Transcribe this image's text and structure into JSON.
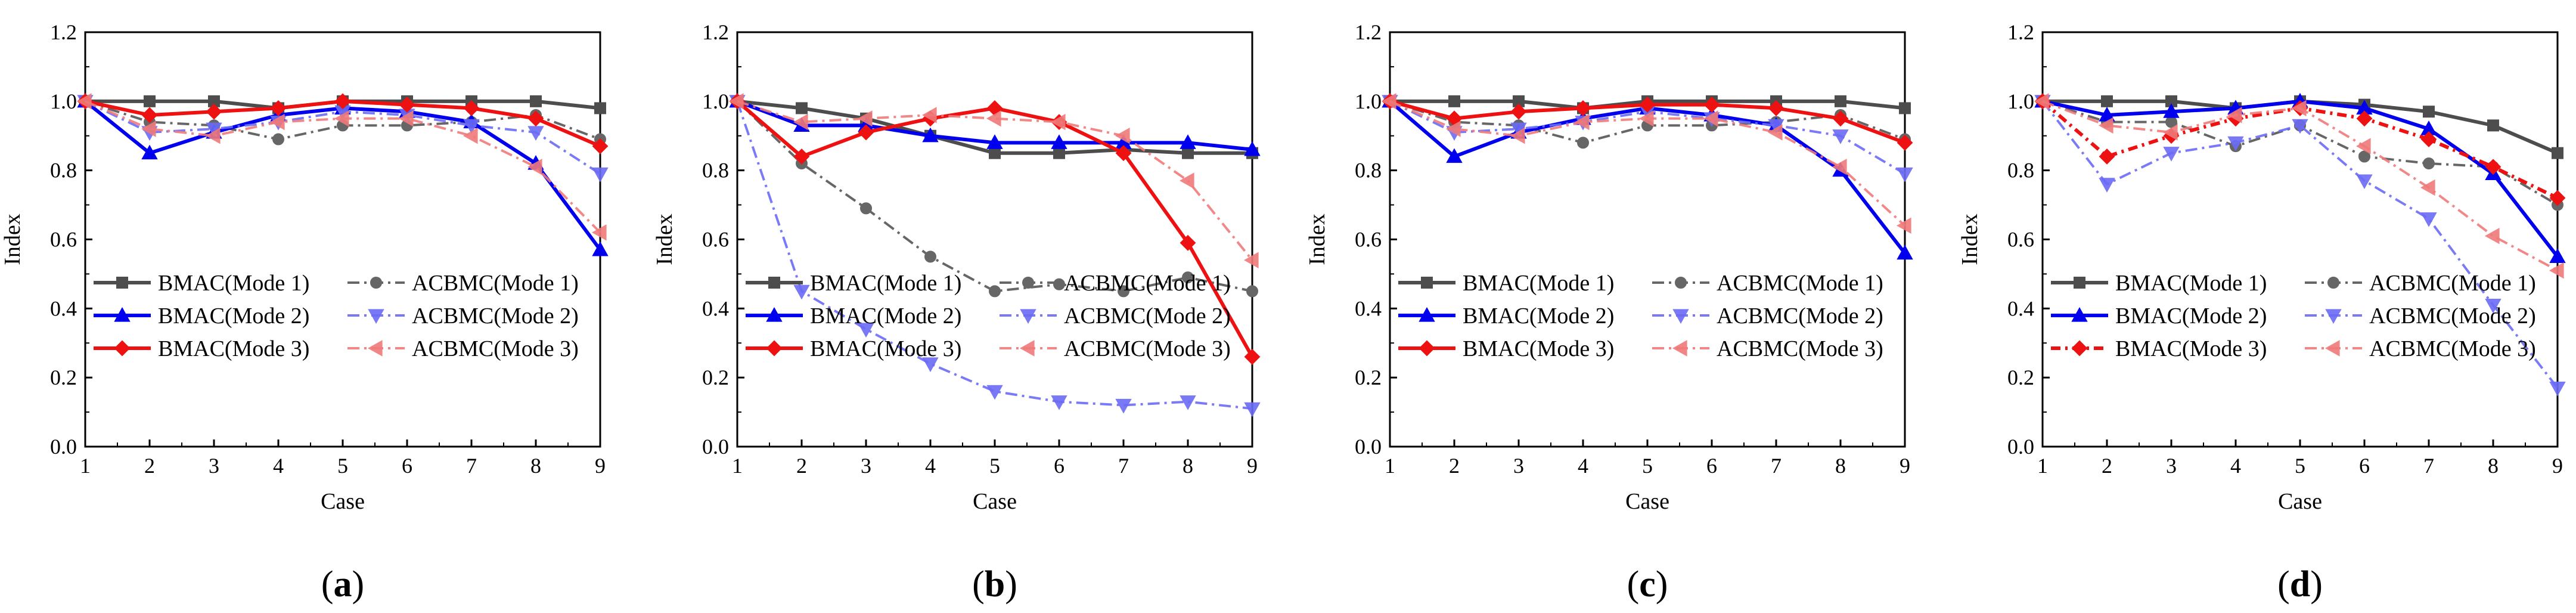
{
  "chart_data": [
    {
      "type": "line",
      "panel_label": {
        "open": "(",
        "letter": "a",
        "close": ")"
      },
      "xlabel": "Case",
      "ylabel": "Index",
      "xlim": [
        1,
        9
      ],
      "ylim": [
        0,
        1.2
      ],
      "x": [
        1,
        2,
        3,
        4,
        5,
        6,
        7,
        8,
        9
      ],
      "x_ticks": [
        "1",
        "2",
        "3",
        "4",
        "5",
        "6",
        "7",
        "8",
        "9"
      ],
      "y_ticks": [
        "0.0",
        "0.2",
        "0.4",
        "0.6",
        "0.8",
        "1.0",
        "1.2"
      ],
      "legend_position": "lower-left",
      "series": [
        {
          "name": "BMAC(Mode 1)",
          "values": [
            1.0,
            1.0,
            1.0,
            0.98,
            1.0,
            1.0,
            1.0,
            1.0,
            0.98
          ]
        },
        {
          "name": "ACBMC(Mode 1)",
          "values": [
            1.0,
            0.94,
            0.93,
            0.89,
            0.93,
            0.93,
            0.94,
            0.96,
            0.89
          ]
        },
        {
          "name": "BMAC(Mode 2)",
          "values": [
            1.0,
            0.85,
            0.91,
            0.96,
            0.98,
            0.97,
            0.94,
            0.82,
            0.57
          ]
        },
        {
          "name": "ACBMC(Mode 2)",
          "values": [
            1.0,
            0.91,
            0.92,
            0.94,
            0.97,
            0.96,
            0.93,
            0.91,
            0.79
          ]
        },
        {
          "name": "BMAC(Mode 3)",
          "values": [
            1.0,
            0.96,
            0.97,
            0.98,
            1.0,
            0.99,
            0.98,
            0.95,
            0.87
          ]
        },
        {
          "name": "ACBMC(Mode 3)",
          "values": [
            1.0,
            0.92,
            0.9,
            0.94,
            0.95,
            0.95,
            0.9,
            0.81,
            0.62
          ]
        }
      ]
    },
    {
      "type": "line",
      "panel_label": {
        "open": "(",
        "letter": "b",
        "close": ")"
      },
      "xlabel": "Case",
      "ylabel": "Index",
      "xlim": [
        1,
        9
      ],
      "ylim": [
        0,
        1.2
      ],
      "x": [
        1,
        2,
        3,
        4,
        5,
        6,
        7,
        8,
        9
      ],
      "x_ticks": [
        "1",
        "2",
        "3",
        "4",
        "5",
        "6",
        "7",
        "8",
        "9"
      ],
      "y_ticks": [
        "0.0",
        "0.2",
        "0.4",
        "0.6",
        "0.8",
        "1.0",
        "1.2"
      ],
      "legend_position": "lower-left",
      "series": [
        {
          "name": "BMAC(Mode 1)",
          "values": [
            1.0,
            0.98,
            0.95,
            0.9,
            0.85,
            0.85,
            0.86,
            0.85,
            0.85
          ]
        },
        {
          "name": "ACBMC(Mode 1)",
          "values": [
            1.0,
            0.82,
            0.69,
            0.55,
            0.45,
            0.47,
            0.45,
            0.49,
            0.45
          ]
        },
        {
          "name": "BMAC(Mode 2)",
          "values": [
            1.0,
            0.93,
            0.93,
            0.9,
            0.88,
            0.88,
            0.88,
            0.88,
            0.86
          ]
        },
        {
          "name": "ACBMC(Mode 2)",
          "values": [
            1.0,
            0.45,
            0.34,
            0.24,
            0.16,
            0.13,
            0.12,
            0.13,
            0.11
          ]
        },
        {
          "name": "BMAC(Mode 3)",
          "values": [
            1.0,
            0.84,
            0.91,
            0.95,
            0.98,
            0.94,
            0.85,
            0.59,
            0.26
          ]
        },
        {
          "name": "ACBMC(Mode 3)",
          "values": [
            1.0,
            0.94,
            0.95,
            0.96,
            0.95,
            0.94,
            0.9,
            0.77,
            0.54
          ]
        }
      ]
    },
    {
      "type": "line",
      "panel_label": {
        "open": "(",
        "letter": "c",
        "close": ")"
      },
      "xlabel": "Case",
      "ylabel": "Index",
      "xlim": [
        1,
        9
      ],
      "ylim": [
        0,
        1.2
      ],
      "x": [
        1,
        2,
        3,
        4,
        5,
        6,
        7,
        8,
        9
      ],
      "x_ticks": [
        "1",
        "2",
        "3",
        "4",
        "5",
        "6",
        "7",
        "8",
        "9"
      ],
      "y_ticks": [
        "0.0",
        "0.2",
        "0.4",
        "0.6",
        "0.8",
        "1.0",
        "1.2"
      ],
      "legend_position": "lower-left",
      "series": [
        {
          "name": "BMAC(Mode 1)",
          "values": [
            1.0,
            1.0,
            1.0,
            0.98,
            1.0,
            1.0,
            1.0,
            1.0,
            0.98
          ]
        },
        {
          "name": "ACBMC(Mode 1)",
          "values": [
            1.0,
            0.94,
            0.93,
            0.88,
            0.93,
            0.93,
            0.94,
            0.96,
            0.89
          ]
        },
        {
          "name": "BMAC(Mode 2)",
          "values": [
            1.0,
            0.84,
            0.91,
            0.95,
            0.98,
            0.96,
            0.93,
            0.8,
            0.56
          ]
        },
        {
          "name": "ACBMC(Mode 2)",
          "values": [
            1.0,
            0.91,
            0.92,
            0.94,
            0.97,
            0.95,
            0.93,
            0.9,
            0.79
          ]
        },
        {
          "name": "BMAC(Mode 3)",
          "values": [
            1.0,
            0.95,
            0.97,
            0.98,
            0.99,
            0.99,
            0.98,
            0.95,
            0.88
          ]
        },
        {
          "name": "ACBMC(Mode 3)",
          "values": [
            1.0,
            0.92,
            0.9,
            0.94,
            0.95,
            0.95,
            0.91,
            0.81,
            0.64
          ]
        }
      ]
    },
    {
      "type": "line",
      "panel_label": {
        "open": "(",
        "letter": "d",
        "close": ")"
      },
      "xlabel": "Case",
      "ylabel": "Index",
      "xlim": [
        1,
        9
      ],
      "ylim": [
        0,
        1.2
      ],
      "x": [
        1,
        2,
        3,
        4,
        5,
        6,
        7,
        8,
        9
      ],
      "x_ticks": [
        "1",
        "2",
        "3",
        "4",
        "5",
        "6",
        "7",
        "8",
        "9"
      ],
      "y_ticks": [
        "0.0",
        "0.2",
        "0.4",
        "0.6",
        "0.8",
        "1.0",
        "1.2"
      ],
      "legend_position": "lower-left",
      "series": [
        {
          "name": "BMAC(Mode 1)",
          "values": [
            1.0,
            1.0,
            1.0,
            0.98,
            1.0,
            0.99,
            0.97,
            0.93,
            0.85
          ]
        },
        {
          "name": "ACBMC(Mode 1)",
          "values": [
            1.0,
            0.94,
            0.94,
            0.87,
            0.93,
            0.84,
            0.82,
            0.81,
            0.7
          ]
        },
        {
          "name": "BMAC(Mode 2)",
          "values": [
            1.0,
            0.96,
            0.97,
            0.98,
            1.0,
            0.98,
            0.92,
            0.79,
            0.55
          ]
        },
        {
          "name": "ACBMC(Mode 2)",
          "values": [
            1.0,
            0.76,
            0.85,
            0.88,
            0.93,
            0.77,
            0.66,
            0.41,
            0.17
          ]
        },
        {
          "name": "BMAC(Mode 3)",
          "values": [
            1.0,
            0.84,
            0.9,
            0.95,
            0.98,
            0.95,
            0.89,
            0.81,
            0.72
          ]
        },
        {
          "name": "ACBMC(Mode 3)",
          "values": [
            1.0,
            0.93,
            0.91,
            0.96,
            0.98,
            0.87,
            0.75,
            0.61,
            0.51
          ]
        }
      ]
    }
  ],
  "styles": [
    {
      "color": "#4d4d4d",
      "dash": "none",
      "marker": "square",
      "mfill": "#4d4d4d",
      "opacity": 1,
      "width": 6
    },
    {
      "color": "#666666",
      "dash": "20,8,4,8",
      "marker": "circle",
      "mfill": "#666666",
      "opacity": 1,
      "width": 4
    },
    {
      "color": "#0000ee",
      "dash": "none",
      "marker": "triangle-up",
      "mfill": "#0000ee",
      "opacity": 1,
      "width": 6
    },
    {
      "color": "#6b6bf5",
      "dash": "20,8,4,8",
      "marker": "triangle-down",
      "mfill": "#6b6bf5",
      "opacity": 0.9,
      "width": 4
    },
    {
      "color": "#ee1111",
      "dash": "none",
      "marker": "diamond",
      "mfill": "#ee1111",
      "opacity": 1,
      "width": 6
    },
    {
      "color": "#f07a7a",
      "dash": "20,8,4,8",
      "marker": "triangle-left",
      "mfill": "#f07a7a",
      "opacity": 0.9,
      "width": 4
    }
  ],
  "panel_d_mode3_dash": "16,8,4,8"
}
